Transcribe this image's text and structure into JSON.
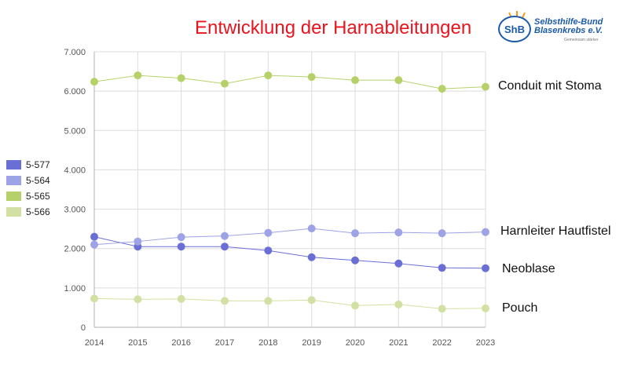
{
  "title": "Entwicklung der Harnableitungen",
  "logo": {
    "badge": "ShB",
    "line1": "Selbsthilfe-Bund",
    "line2": "Blasenkrebs e.V.",
    "tagline": "Gemeinsam stärker"
  },
  "colors": {
    "title": "#e8141e",
    "neoblase": "#6a6fd6",
    "hautfistel": "#9ea2e6",
    "conduit": "#b6d16a",
    "pouch": "#d3e0a3"
  },
  "chart_data": {
    "type": "line",
    "x": [
      "2014",
      "2015",
      "2016",
      "2017",
      "2018",
      "2019",
      "2020",
      "2021",
      "2022",
      "2023"
    ],
    "ylim": [
      0,
      7000
    ],
    "yticks": [
      "0",
      "1.000",
      "2.000",
      "3.000",
      "4.000",
      "5.000",
      "6.000",
      "7.000"
    ],
    "ytick_values": [
      0,
      1000,
      2000,
      3000,
      4000,
      5000,
      6000,
      7000
    ],
    "grid": true,
    "legend_position": "left",
    "series": [
      {
        "name": "5-577",
        "label": "Neoblase",
        "color": "#6a6fd6",
        "values": [
          2300,
          2050,
          2050,
          2050,
          1950,
          1780,
          1700,
          1620,
          1510,
          1500
        ]
      },
      {
        "name": "5-564",
        "label": "Harnleiter Hautfistel",
        "color": "#9ea2e6",
        "values": [
          2100,
          2180,
          2290,
          2320,
          2400,
          2510,
          2390,
          2410,
          2390,
          2420
        ]
      },
      {
        "name": "5-565",
        "label": "Conduit mit Stoma",
        "color": "#b6d16a",
        "values": [
          6240,
          6400,
          6330,
          6190,
          6400,
          6360,
          6280,
          6280,
          6060,
          6110
        ]
      },
      {
        "name": "5-566",
        "label": "Pouch",
        "color": "#d3e0a3",
        "values": [
          730,
          710,
          720,
          670,
          670,
          690,
          550,
          580,
          470,
          480
        ]
      }
    ]
  }
}
